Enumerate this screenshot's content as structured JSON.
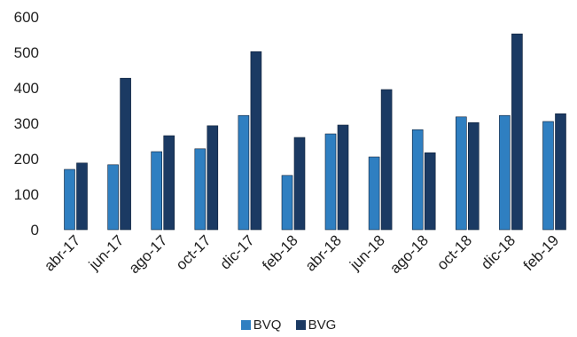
{
  "chart_data": {
    "type": "bar",
    "categories": [
      "abr-17",
      "jun-17",
      "ago-17",
      "oct-17",
      "dic-17",
      "feb-18",
      "abr-18",
      "jun-18",
      "ago-18",
      "oct-18",
      "dic-18",
      "feb-19"
    ],
    "series": [
      {
        "name": "BVQ",
        "color": "#2f7fc1",
        "values": [
          170,
          183,
          220,
          228,
          322,
          153,
          270,
          205,
          282,
          318,
          322,
          305
        ]
      },
      {
        "name": "BVG",
        "color": "#1b3a63",
        "values": [
          188,
          427,
          265,
          293,
          502,
          260,
          295,
          395,
          217,
          302,
          552,
          327
        ]
      }
    ],
    "ylim": [
      0,
      600
    ],
    "yticks": [
      0,
      100,
      200,
      300,
      400,
      500,
      600
    ],
    "grid": false,
    "legend": "bottom"
  }
}
